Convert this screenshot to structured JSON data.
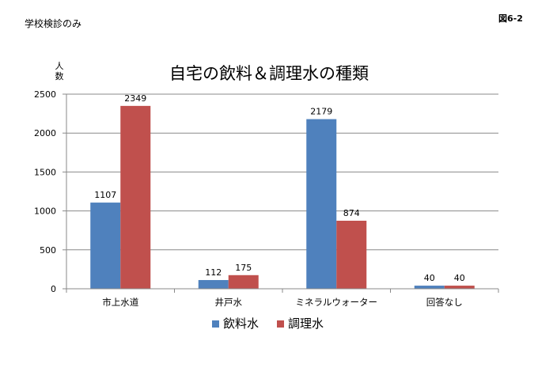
{
  "page": {
    "top_left_label": "学校検診のみ",
    "figure_label": "図6-2"
  },
  "chart_data": {
    "type": "bar",
    "title": "自宅の飲料＆調理水の種類",
    "ylabel": "人数",
    "xlabel": "",
    "categories": [
      "市上水道",
      "井戸水",
      "ミネラルウォーター",
      "回答なし"
    ],
    "series": [
      {
        "name": "飲料水",
        "color": "#4f81bd",
        "values": [
          1107,
          112,
          2179,
          40
        ]
      },
      {
        "name": "調理水",
        "color": "#c0504d",
        "values": [
          2349,
          175,
          874,
          40
        ]
      }
    ],
    "ylim": [
      0,
      2500
    ],
    "yticks": [
      "0",
      "500",
      "1000",
      "1500",
      "2000",
      "2500"
    ],
    "grid": true,
    "legend_position": "bottom"
  }
}
